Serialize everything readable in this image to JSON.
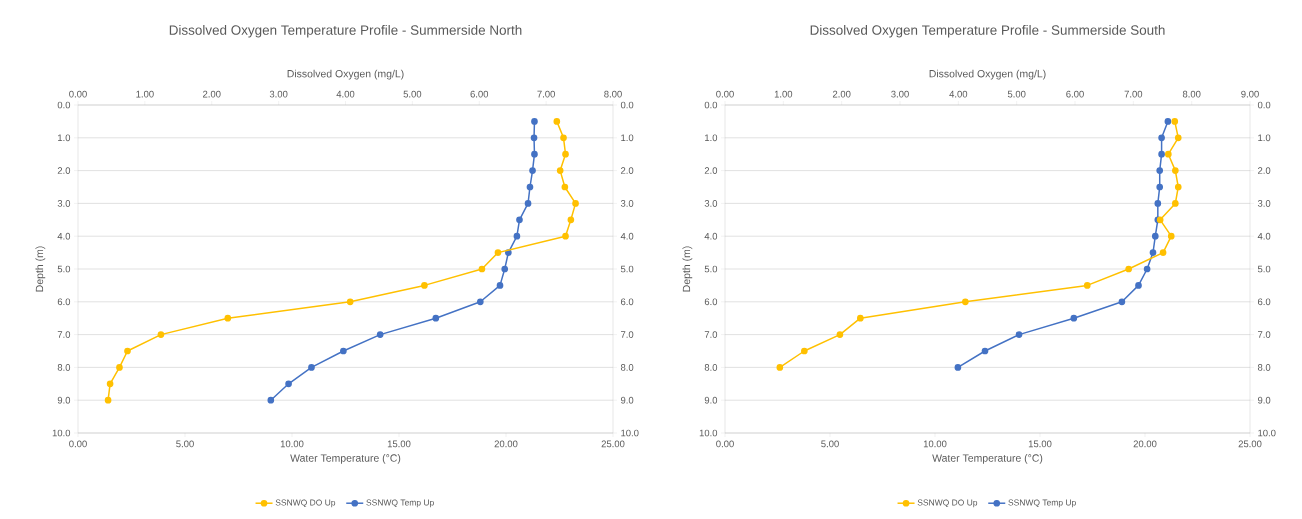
{
  "chart_data": [
    {
      "type": "line",
      "title": "Dissolved Oxygen Temperature Profile - Summerside North",
      "xlabel": "Water Temperature (°C)",
      "x2label": "Dissolved Oxygen (mg/L)",
      "ylabel": "Depth (m)",
      "xlim": [
        0,
        25
      ],
      "xticks": [
        {
          "value": 0,
          "label": "0.00"
        },
        {
          "value": 5,
          "label": "5.00"
        },
        {
          "value": 10,
          "label": "10.00"
        },
        {
          "value": 15,
          "label": "15.00"
        },
        {
          "value": 20,
          "label": "20.00"
        },
        {
          "value": 25,
          "label": "25.00"
        }
      ],
      "x2lim": [
        0,
        8
      ],
      "x2ticks": [
        {
          "value": 0,
          "label": "0.00"
        },
        {
          "value": 1,
          "label": "1.00"
        },
        {
          "value": 2,
          "label": "2.00"
        },
        {
          "value": 3,
          "label": "3.00"
        },
        {
          "value": 4,
          "label": "4.00"
        },
        {
          "value": 5,
          "label": "5.00"
        },
        {
          "value": 6,
          "label": "6.00"
        },
        {
          "value": 7,
          "label": "7.00"
        },
        {
          "value": 8,
          "label": "8.00"
        }
      ],
      "ylim": [
        10,
        0
      ],
      "yticks": [
        {
          "value": 0,
          "label": "0.0"
        },
        {
          "value": 1,
          "label": "1.0"
        },
        {
          "value": 2,
          "label": "2.0"
        },
        {
          "value": 3,
          "label": "3.0"
        },
        {
          "value": 4,
          "label": "4.0"
        },
        {
          "value": 5,
          "label": "5.0"
        },
        {
          "value": 6,
          "label": "6.0"
        },
        {
          "value": 7,
          "label": "7.0"
        },
        {
          "value": 8,
          "label": "8.0"
        },
        {
          "value": 9,
          "label": "9.0"
        },
        {
          "value": 10,
          "label": "10.0"
        }
      ],
      "y2lim": [
        10,
        0
      ],
      "y2ticks": [
        {
          "value": 0,
          "label": "0.0"
        },
        {
          "value": 1,
          "label": "1.0"
        },
        {
          "value": 2,
          "label": "2.0"
        },
        {
          "value": 3,
          "label": "3.0"
        },
        {
          "value": 4,
          "label": "4.0"
        },
        {
          "value": 5,
          "label": "5.0"
        },
        {
          "value": 6,
          "label": "6.0"
        },
        {
          "value": 7,
          "label": "7.0"
        },
        {
          "value": 8,
          "label": "8.0"
        },
        {
          "value": 9,
          "label": "9.0"
        },
        {
          "value": 10,
          "label": "10.0"
        }
      ],
      "grid": "y",
      "legend": "bottom",
      "marker": "circle",
      "series": [
        {
          "name": "SSNWQ DO Up",
          "color": "#ffc000",
          "axis": "x2",
          "x": [
            7.16,
            7.26,
            7.29,
            7.21,
            7.28,
            7.44,
            7.37,
            7.29,
            6.28,
            6.04,
            5.18,
            4.07,
            2.24,
            1.24,
            0.74,
            0.62,
            0.48,
            0.45
          ],
          "values": [
            0.5,
            1.0,
            1.5,
            2.0,
            2.5,
            3.0,
            3.5,
            4.0,
            4.5,
            5.0,
            5.5,
            6.0,
            6.5,
            7.0,
            7.5,
            8.0,
            8.5,
            9.0
          ]
        },
        {
          "name": "SSNWQ Temp Up",
          "color": "#4472c4",
          "x": [
            21.33,
            21.31,
            21.33,
            21.24,
            21.12,
            21.03,
            20.63,
            20.51,
            20.11,
            19.94,
            19.72,
            18.8,
            16.72,
            14.12,
            12.4,
            10.91,
            9.84,
            9.01
          ],
          "values": [
            0.5,
            1.0,
            1.5,
            2.0,
            2.5,
            3.0,
            3.5,
            4.0,
            4.5,
            5.0,
            5.5,
            6.0,
            6.5,
            7.0,
            7.5,
            8.0,
            8.5,
            9.0
          ]
        }
      ]
    },
    {
      "type": "line",
      "title": "Dissolved Oxygen Temperature Profile - Summerside South",
      "xlabel": "Water Temperature (°C)",
      "x2label": "Dissolved Oxygen (mg/L)",
      "ylabel": "Depth (m)",
      "xlim": [
        0,
        25
      ],
      "xticks": [
        {
          "value": 0,
          "label": "0.00"
        },
        {
          "value": 5,
          "label": "5.00"
        },
        {
          "value": 10,
          "label": "10.00"
        },
        {
          "value": 15,
          "label": "15.00"
        },
        {
          "value": 20,
          "label": "20.00"
        },
        {
          "value": 25,
          "label": "25.00"
        }
      ],
      "x2lim": [
        0,
        9
      ],
      "x2ticks": [
        {
          "value": 0,
          "label": "0.00"
        },
        {
          "value": 1,
          "label": "1.00"
        },
        {
          "value": 2,
          "label": "2.00"
        },
        {
          "value": 3,
          "label": "3.00"
        },
        {
          "value": 4,
          "label": "4.00"
        },
        {
          "value": 5,
          "label": "5.00"
        },
        {
          "value": 6,
          "label": "6.00"
        },
        {
          "value": 7,
          "label": "7.00"
        },
        {
          "value": 8,
          "label": "8.00"
        },
        {
          "value": 9,
          "label": "9.00"
        }
      ],
      "ylim": [
        10,
        0
      ],
      "yticks": [
        {
          "value": 0,
          "label": "0.0"
        },
        {
          "value": 1,
          "label": "1.0"
        },
        {
          "value": 2,
          "label": "2.0"
        },
        {
          "value": 3,
          "label": "3.0"
        },
        {
          "value": 4,
          "label": "4.0"
        },
        {
          "value": 5,
          "label": "5.0"
        },
        {
          "value": 6,
          "label": "6.0"
        },
        {
          "value": 7,
          "label": "7.0"
        },
        {
          "value": 8,
          "label": "8.0"
        },
        {
          "value": 9,
          "label": "9.0"
        },
        {
          "value": 10,
          "label": "10.0"
        }
      ],
      "y2lim": [
        10,
        0
      ],
      "y2ticks": [
        {
          "value": 0,
          "label": "0.0"
        },
        {
          "value": 1,
          "label": "1.0"
        },
        {
          "value": 2,
          "label": "2.0"
        },
        {
          "value": 3,
          "label": "3.0"
        },
        {
          "value": 4,
          "label": "4.0"
        },
        {
          "value": 5,
          "label": "5.0"
        },
        {
          "value": 6,
          "label": "6.0"
        },
        {
          "value": 7,
          "label": "7.0"
        },
        {
          "value": 8,
          "label": "8.0"
        },
        {
          "value": 9,
          "label": "9.0"
        },
        {
          "value": 10,
          "label": "10.0"
        }
      ],
      "grid": "y",
      "legend": "bottom",
      "marker": "circle",
      "series": [
        {
          "name": "SSNWQ DO Up",
          "color": "#ffc000",
          "axis": "x2",
          "x": [
            7.71,
            7.77,
            7.6,
            7.72,
            7.77,
            7.72,
            7.46,
            7.65,
            7.51,
            6.92,
            6.21,
            4.12,
            2.32,
            1.97,
            1.36,
            0.94
          ],
          "values": [
            0.5,
            1.0,
            1.5,
            2.0,
            2.5,
            3.0,
            3.5,
            4.0,
            4.5,
            5.0,
            5.5,
            6.0,
            6.5,
            7.0,
            7.5,
            8.0
          ]
        },
        {
          "name": "SSNWQ Temp Up",
          "color": "#4472c4",
          "x": [
            21.09,
            20.79,
            20.79,
            20.7,
            20.7,
            20.61,
            20.61,
            20.49,
            20.38,
            20.1,
            19.69,
            18.9,
            16.61,
            14.0,
            12.38,
            11.09
          ],
          "values": [
            0.5,
            1.0,
            1.5,
            2.0,
            2.5,
            3.0,
            3.5,
            4.0,
            4.5,
            5.0,
            5.5,
            6.0,
            6.5,
            7.0,
            7.5,
            8.0
          ]
        }
      ]
    }
  ]
}
